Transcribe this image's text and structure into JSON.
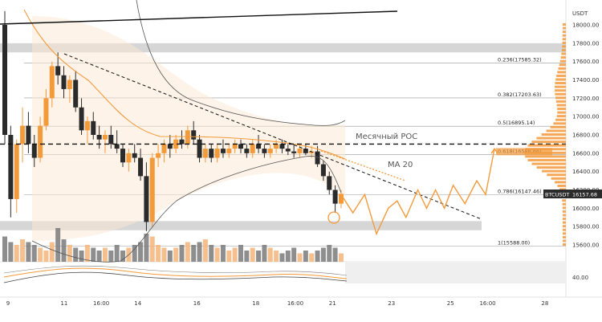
{
  "chart_data": {
    "type": "candlestick",
    "currency_label": "USDT",
    "symbol": "BTCUSDT",
    "last_price": "16157.68",
    "ylim": [
      15500,
      18200
    ],
    "y_ticks": [
      {
        "label": "18000.00",
        "v": 18000
      },
      {
        "label": "17800.00",
        "v": 17800
      },
      {
        "label": "17600.00",
        "v": 17600
      },
      {
        "label": "17400.00",
        "v": 17400
      },
      {
        "label": "17200.00",
        "v": 17200
      },
      {
        "label": "17000.00",
        "v": 17000
      },
      {
        "label": "16800.00",
        "v": 16800
      },
      {
        "label": "16600.00",
        "v": 16600
      },
      {
        "label": "16400.00",
        "v": 16400
      },
      {
        "label": "16200.00",
        "v": 16200
      },
      {
        "label": "16000.00",
        "v": 16000
      },
      {
        "label": "15800.00",
        "v": 15800
      },
      {
        "label": "15600.00",
        "v": 15600
      }
    ],
    "indicator_tick": "40.00",
    "x_ticks": [
      {
        "label": "9",
        "c": 0
      },
      {
        "label": "11",
        "c": 9.5
      },
      {
        "label": "16:00",
        "c": 15.8
      },
      {
        "label": "14",
        "c": 22
      },
      {
        "label": "16",
        "c": 32
      },
      {
        "label": "18",
        "c": 42
      },
      {
        "label": "16:00",
        "c": 48.7
      },
      {
        "label": "21",
        "c": 55
      },
      {
        "label": "23",
        "c": 65
      },
      {
        "label": "25",
        "c": 75
      },
      {
        "label": "16:00",
        "c": 81.3
      },
      {
        "label": "28",
        "c": 91
      }
    ],
    "fib_levels": [
      {
        "label": "0.236(17585.32)",
        "v": 17585.32
      },
      {
        "label": "0.382(17203.63)",
        "v": 17203.63
      },
      {
        "label": "0.5(16895.14)",
        "v": 16895.14
      },
      {
        "label": "0.618(16586.66)",
        "v": 16586.66
      },
      {
        "label": "0.786(16147.46)",
        "v": 16147.46
      },
      {
        "label": "1(15588.00)",
        "v": 15588.0
      }
    ],
    "annotations": {
      "poc_label": "Месячный POC",
      "ma_label": "MA 20"
    },
    "poc_level": 16700,
    "zones": [
      {
        "from": 17700,
        "to": 17800
      },
      {
        "from": 15760,
        "to": 15860
      }
    ],
    "candles": [
      [
        18000,
        18150,
        16700,
        16800
      ],
      [
        16800,
        16900,
        15900,
        16100
      ],
      [
        16100,
        16750,
        15950,
        16700
      ],
      [
        16700,
        17100,
        16500,
        16900
      ],
      [
        16900,
        17050,
        16600,
        16700
      ],
      [
        16700,
        16800,
        16450,
        16550
      ],
      [
        16550,
        17000,
        16500,
        16900
      ],
      [
        16900,
        17300,
        16850,
        17200
      ],
      [
        17200,
        17600,
        17100,
        17550
      ],
      [
        17550,
        17700,
        17350,
        17450
      ],
      [
        17450,
        17550,
        17200,
        17300
      ],
      [
        17300,
        17450,
        17150,
        17400
      ],
      [
        17400,
        17500,
        17050,
        17100
      ],
      [
        17100,
        17200,
        16800,
        16850
      ],
      [
        16850,
        17000,
        16700,
        16950
      ],
      [
        16950,
        17050,
        16750,
        16800
      ],
      [
        16800,
        16900,
        16650,
        16750
      ],
      [
        16750,
        16850,
        16600,
        16800
      ],
      [
        16800,
        16900,
        16650,
        16700
      ],
      [
        16700,
        16850,
        16600,
        16650
      ],
      [
        16650,
        16700,
        16450,
        16500
      ],
      [
        16500,
        16650,
        16400,
        16600
      ],
      [
        16600,
        16700,
        16500,
        16550
      ],
      [
        16550,
        16650,
        16300,
        16350
      ],
      [
        16350,
        16500,
        15750,
        15850
      ],
      [
        15850,
        16600,
        15800,
        16550
      ],
      [
        16550,
        16700,
        16450,
        16600
      ],
      [
        16600,
        16750,
        16500,
        16700
      ],
      [
        16700,
        16800,
        16550,
        16650
      ],
      [
        16650,
        16800,
        16600,
        16750
      ],
      [
        16750,
        16850,
        16650,
        16700
      ],
      [
        16700,
        16900,
        16650,
        16850
      ],
      [
        16850,
        16950,
        16700,
        16750
      ],
      [
        16750,
        16800,
        16500,
        16550
      ],
      [
        16550,
        16700,
        16500,
        16650
      ],
      [
        16650,
        16700,
        16500,
        16550
      ],
      [
        16550,
        16700,
        16500,
        16650
      ],
      [
        16650,
        16750,
        16550,
        16600
      ],
      [
        16600,
        16700,
        16550,
        16650
      ],
      [
        16650,
        16750,
        16600,
        16700
      ],
      [
        16700,
        16750,
        16600,
        16650
      ],
      [
        16650,
        16700,
        16550,
        16600
      ],
      [
        16600,
        16750,
        16550,
        16700
      ],
      [
        16700,
        16800,
        16600,
        16650
      ],
      [
        16650,
        16700,
        16550,
        16600
      ],
      [
        16600,
        16700,
        16550,
        16650
      ],
      [
        16650,
        16750,
        16600,
        16700
      ],
      [
        16700,
        16750,
        16600,
        16650
      ],
      [
        16650,
        16700,
        16580,
        16620
      ],
      [
        16620,
        16700,
        16550,
        16600
      ],
      [
        16600,
        16700,
        16550,
        16650
      ],
      [
        16650,
        16700,
        16580,
        16600
      ],
      [
        16600,
        16680,
        16550,
        16620
      ],
      [
        16620,
        16680,
        16450,
        16480
      ],
      [
        16480,
        16520,
        16300,
        16350
      ],
      [
        16350,
        16400,
        16150,
        16200
      ],
      [
        16200,
        16250,
        15950,
        16050
      ],
      [
        16050,
        16200,
        16000,
        16157.68
      ]
    ],
    "volume": [
      0.45,
      0.35,
      0.3,
      0.4,
      0.35,
      0.3,
      0.25,
      0.2,
      0.35,
      0.6,
      0.4,
      0.3,
      0.25,
      0.2,
      0.3,
      0.25,
      0.2,
      0.25,
      0.2,
      0.3,
      0.2,
      0.25,
      0.3,
      0.35,
      0.5,
      0.45,
      0.3,
      0.25,
      0.2,
      0.25,
      0.3,
      0.35,
      0.3,
      0.35,
      0.4,
      0.3,
      0.25,
      0.3,
      0.2,
      0.25,
      0.3,
      0.2,
      0.25,
      0.2,
      0.3,
      0.25,
      0.2,
      0.15,
      0.2,
      0.25,
      0.15,
      0.2,
      0.15,
      0.2,
      0.25,
      0.3,
      0.25,
      0.15
    ],
    "forecast_path": [
      [
        57,
        16150
      ],
      [
        59,
        15950
      ],
      [
        61,
        16150
      ],
      [
        63,
        15720
      ],
      [
        65,
        16000
      ],
      [
        66.5,
        16080
      ],
      [
        68,
        15900
      ],
      [
        70,
        16200
      ],
      [
        71.5,
        16000
      ],
      [
        73,
        16200
      ],
      [
        74.5,
        16000
      ],
      [
        76,
        16250
      ],
      [
        78,
        16050
      ],
      [
        80,
        16300
      ],
      [
        81.5,
        16150
      ],
      [
        83,
        16650
      ]
    ],
    "colors": {
      "up": "#f39a3b",
      "down": "#2b2b2b",
      "accent": "#f39a3b",
      "zone": "#cccccc"
    }
  }
}
